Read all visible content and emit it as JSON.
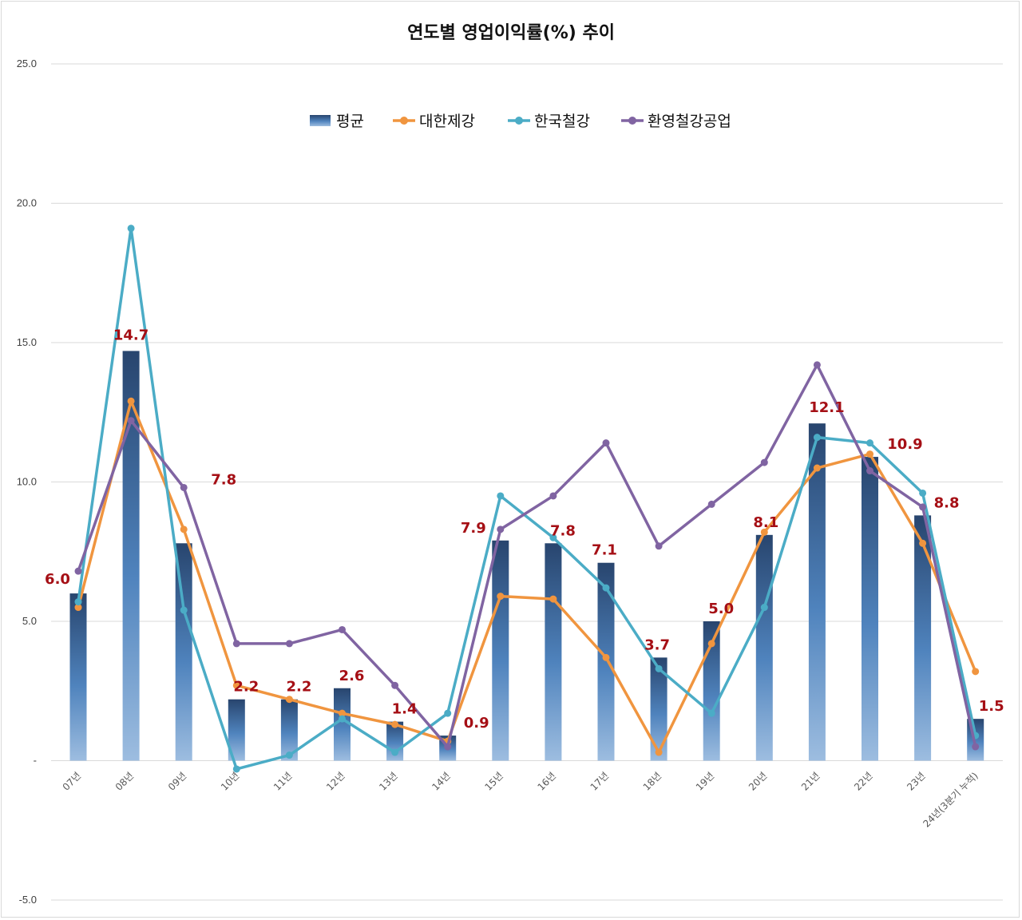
{
  "chart_data": {
    "type": "bar",
    "title": "연도별 영업이익률(%) 추이",
    "xlabel": "",
    "ylabel": "",
    "ylim": [
      -5,
      25
    ],
    "yticks": [
      "-5.0",
      "-",
      "5.0",
      "10.0",
      "15.0",
      "20.0",
      "25.0"
    ],
    "ytick_values": [
      -5,
      0,
      5,
      10,
      15,
      20,
      25
    ],
    "grid": true,
    "legend_position": "top-center",
    "categories": [
      "07년",
      "08년",
      "09년",
      "10년",
      "11년",
      "12년",
      "13년",
      "14년",
      "15년",
      "16년",
      "17년",
      "18년",
      "19년",
      "20년",
      "21년",
      "22년",
      "23년",
      "24년(3분기 누적)"
    ],
    "series": [
      {
        "name": "평균",
        "type": "bar",
        "color": "#2f5d8e",
        "values": [
          6.0,
          14.7,
          7.8,
          2.2,
          2.2,
          2.6,
          1.4,
          0.9,
          7.9,
          7.8,
          7.1,
          3.7,
          5.0,
          8.1,
          12.1,
          10.9,
          8.8,
          1.5
        ],
        "data_labels": [
          "6.0",
          "14.7",
          "7.8",
          "2.2",
          "2.2",
          "2.6",
          "1.4",
          "0.9",
          "7.9",
          "7.8",
          "7.1",
          "3.7",
          "5.0",
          "8.1",
          "12.1",
          "10.9",
          "8.8",
          "1.5"
        ]
      },
      {
        "name": "대한제강",
        "type": "line",
        "color": "#f0953f",
        "values": [
          5.5,
          12.9,
          8.3,
          2.7,
          2.2,
          1.7,
          1.3,
          0.7,
          5.9,
          5.8,
          3.7,
          0.3,
          4.2,
          8.2,
          10.5,
          11.0,
          7.8,
          3.2
        ]
      },
      {
        "name": "한국철강",
        "type": "line",
        "color": "#4bacc6",
        "values": [
          5.7,
          19.1,
          5.4,
          -0.3,
          0.2,
          1.5,
          0.3,
          1.7,
          9.5,
          8.0,
          6.2,
          3.3,
          1.7,
          5.5,
          11.6,
          11.4,
          9.6,
          0.9
        ]
      },
      {
        "name": "환영철강공업",
        "type": "line",
        "color": "#8064a2",
        "values": [
          6.8,
          12.2,
          9.8,
          4.2,
          4.2,
          4.7,
          2.7,
          0.5,
          8.3,
          9.5,
          11.4,
          7.7,
          9.2,
          10.7,
          14.2,
          10.4,
          9.1,
          0.5
        ]
      }
    ]
  }
}
